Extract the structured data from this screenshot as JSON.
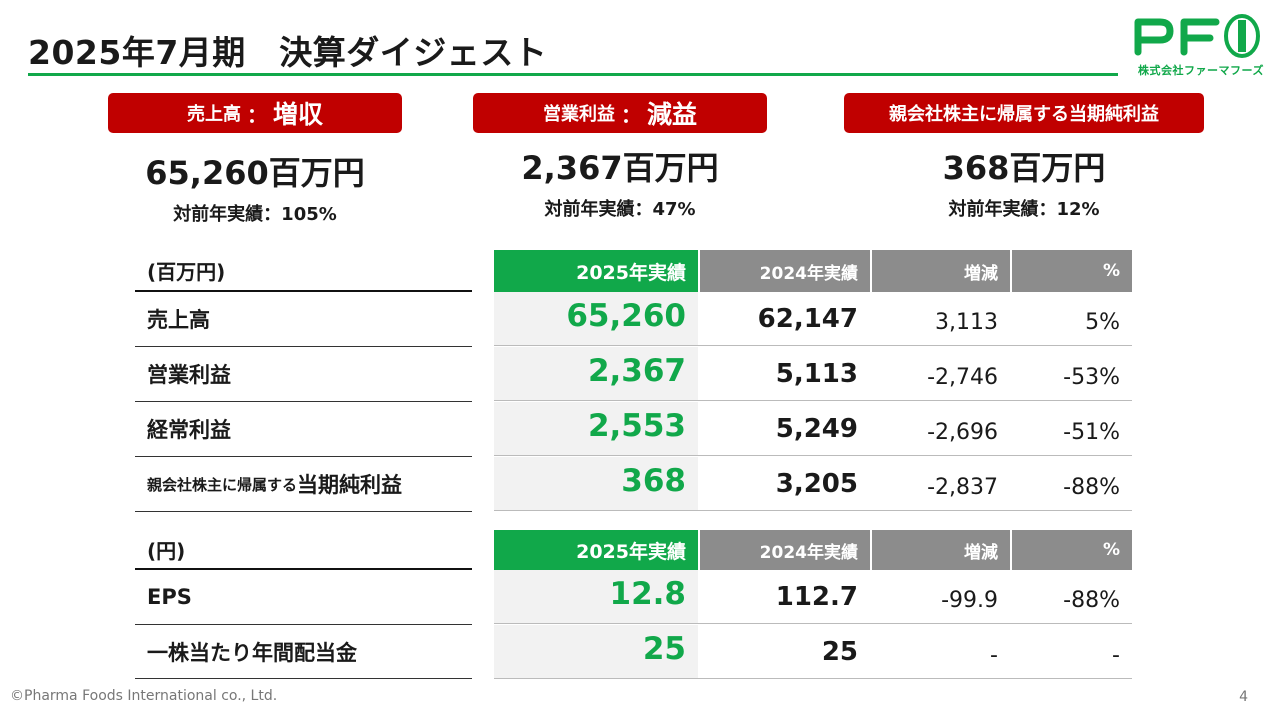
{
  "title": "2025年7月期　決算ダイジェスト",
  "logo": {
    "mark": "PFI",
    "text": "株式会社ファーマフーズ",
    "color": "#11a84a"
  },
  "colors": {
    "accent_green": "#11a84a",
    "badge_red": "#c00000",
    "header_gray": "#8c8c8c"
  },
  "kpis": [
    {
      "label": "売上高",
      "colon": "：",
      "result": "増収",
      "value": "65,260百万円",
      "sub": "対前年実績：105%"
    },
    {
      "label": "営業利益",
      "colon": "：",
      "result": "減益",
      "value": "2,367百万円",
      "sub": "対前年実績：47%"
    },
    {
      "label": "親会社株主に帰属する当期純利益",
      "colon": "",
      "result": "",
      "value": "368百万円",
      "sub": "対前年実績：12%"
    }
  ],
  "table1": {
    "unit": "(百万円)",
    "headers": [
      "2025年実績",
      "2024年実績",
      "増減",
      "%"
    ],
    "rows": [
      {
        "label": "売上高",
        "label_small": "",
        "cur": "65,260",
        "prev": "62,147",
        "diff": "3,113",
        "pct": "5%"
      },
      {
        "label": "営業利益",
        "label_small": "",
        "cur": "2,367",
        "prev": "5,113",
        "diff": "-2,746",
        "pct": "-53%"
      },
      {
        "label": "経常利益",
        "label_small": "",
        "cur": "2,553",
        "prev": "5,249",
        "diff": "-2,696",
        "pct": "-51%"
      },
      {
        "label": "当期純利益",
        "label_small": "親会社株主に帰属する",
        "cur": "368",
        "prev": "3,205",
        "diff": "-2,837",
        "pct": "-88%"
      }
    ]
  },
  "table2": {
    "unit": "(円)",
    "headers": [
      "2025年実績",
      "2024年実績",
      "増減",
      "%"
    ],
    "rows": [
      {
        "label": "EPS",
        "cur": "12.8",
        "prev": "112.7",
        "diff": "-99.9",
        "pct": "-88%"
      },
      {
        "label": "一株当たり年間配当金",
        "cur": "25",
        "prev": "25",
        "diff": "-",
        "pct": "-"
      }
    ]
  },
  "footer": "©Pharma Foods International co., Ltd.",
  "page_number": "4"
}
